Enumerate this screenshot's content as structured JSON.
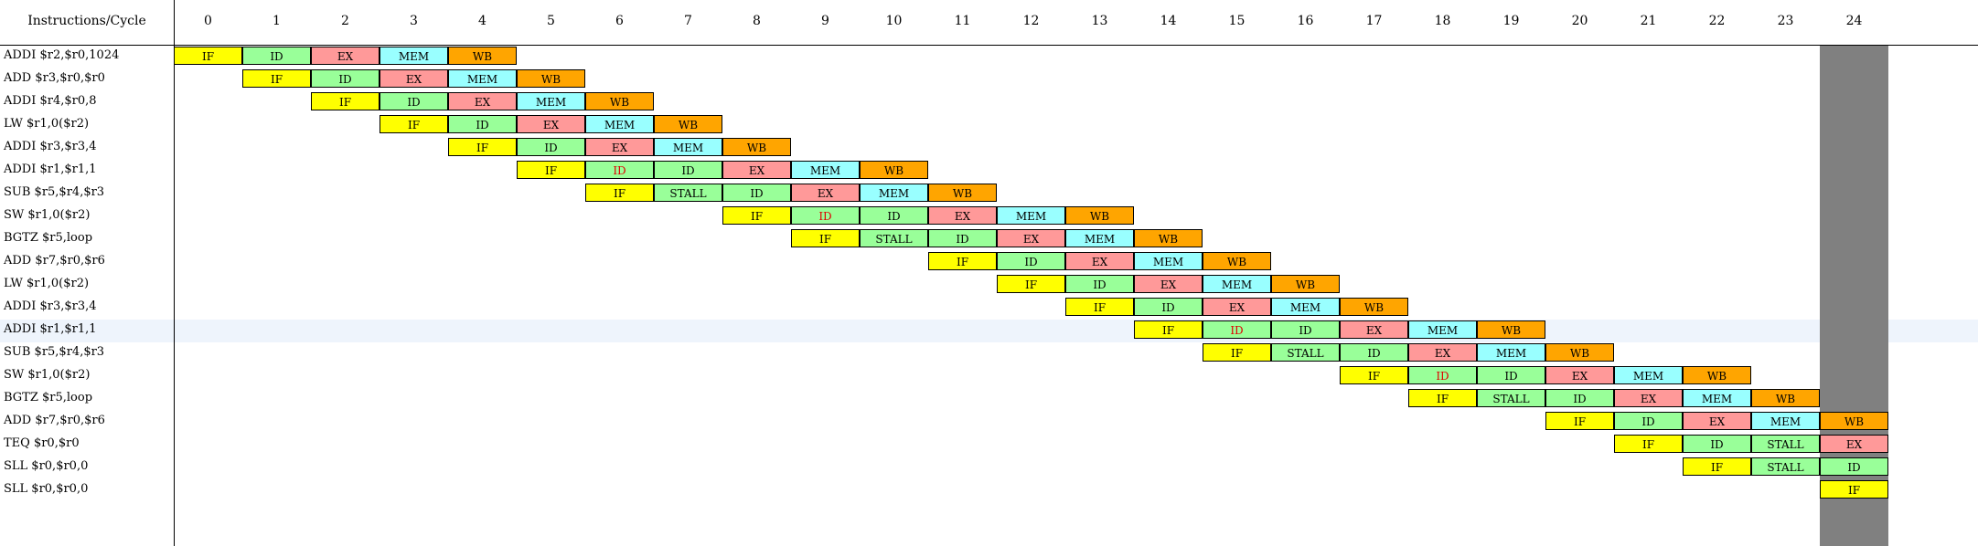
{
  "header": {
    "label": "Instructions/Cycle",
    "cycles": [
      "0",
      "1",
      "2",
      "3",
      "4",
      "5",
      "6",
      "7",
      "8",
      "9",
      "10",
      "11",
      "12",
      "13",
      "14",
      "15",
      "16",
      "17",
      "18",
      "19",
      "20",
      "21",
      "22",
      "23",
      "24"
    ]
  },
  "highlight": {
    "current_cycle": "24",
    "selected_row_index": 12
  },
  "colors": {
    "IF": "#ffff00",
    "ID": "#99ff99",
    "STALL": "#99ff99",
    "EX": "#ff9999",
    "MEM": "#99ffff",
    "WB": "#ffa500",
    "hazard_text": "#e00000",
    "current_column": "#808080"
  },
  "rows": [
    {
      "name": "ADDI $r2,$r0,1024",
      "start": 0,
      "stages": [
        "IF",
        "ID",
        "EX",
        "MEM",
        "WB"
      ],
      "red": []
    },
    {
      "name": "ADD $r3,$r0,$r0",
      "start": 1,
      "stages": [
        "IF",
        "ID",
        "EX",
        "MEM",
        "WB"
      ],
      "red": []
    },
    {
      "name": "ADDI $r4,$r0,8",
      "start": 2,
      "stages": [
        "IF",
        "ID",
        "EX",
        "MEM",
        "WB"
      ],
      "red": []
    },
    {
      "name": "LW $r1,0($r2)",
      "start": 3,
      "stages": [
        "IF",
        "ID",
        "EX",
        "MEM",
        "WB"
      ],
      "red": []
    },
    {
      "name": "ADDI $r3,$r3,4",
      "start": 4,
      "stages": [
        "IF",
        "ID",
        "EX",
        "MEM",
        "WB"
      ],
      "red": []
    },
    {
      "name": "ADDI $r1,$r1,1",
      "start": 5,
      "stages": [
        "IF",
        "ID",
        "ID",
        "EX",
        "MEM",
        "WB"
      ],
      "red": [
        1
      ]
    },
    {
      "name": "SUB $r5,$r4,$r3",
      "start": 6,
      "stages": [
        "IF",
        "STALL",
        "ID",
        "EX",
        "MEM",
        "WB"
      ],
      "red": []
    },
    {
      "name": "SW $r1,0($r2)",
      "start": 8,
      "stages": [
        "IF",
        "ID",
        "ID",
        "EX",
        "MEM",
        "WB"
      ],
      "red": [
        1
      ]
    },
    {
      "name": "BGTZ $r5,loop",
      "start": 9,
      "stages": [
        "IF",
        "STALL",
        "ID",
        "EX",
        "MEM",
        "WB"
      ],
      "red": []
    },
    {
      "name": "ADD $r7,$r0,$r6",
      "start": 11,
      "stages": [
        "IF",
        "ID",
        "EX",
        "MEM",
        "WB"
      ],
      "red": []
    },
    {
      "name": "LW $r1,0($r2)",
      "start": 12,
      "stages": [
        "IF",
        "ID",
        "EX",
        "MEM",
        "WB"
      ],
      "red": []
    },
    {
      "name": "ADDI $r3,$r3,4",
      "start": 13,
      "stages": [
        "IF",
        "ID",
        "EX",
        "MEM",
        "WB"
      ],
      "red": []
    },
    {
      "name": "ADDI $r1,$r1,1",
      "start": 14,
      "stages": [
        "IF",
        "ID",
        "ID",
        "EX",
        "MEM",
        "WB"
      ],
      "red": [
        1
      ]
    },
    {
      "name": "SUB $r5,$r4,$r3",
      "start": 15,
      "stages": [
        "IF",
        "STALL",
        "ID",
        "EX",
        "MEM",
        "WB"
      ],
      "red": []
    },
    {
      "name": "SW $r1,0($r2)",
      "start": 17,
      "stages": [
        "IF",
        "ID",
        "ID",
        "EX",
        "MEM",
        "WB"
      ],
      "red": [
        1
      ]
    },
    {
      "name": "BGTZ $r5,loop",
      "start": 18,
      "stages": [
        "IF",
        "STALL",
        "ID",
        "EX",
        "MEM",
        "WB"
      ],
      "red": []
    },
    {
      "name": "ADD $r7,$r0,$r6",
      "start": 20,
      "stages": [
        "IF",
        "ID",
        "EX",
        "MEM",
        "WB"
      ],
      "red": []
    },
    {
      "name": "TEQ $r0,$r0",
      "start": 21,
      "stages": [
        "IF",
        "ID",
        "STALL",
        "EX"
      ],
      "red": []
    },
    {
      "name": "SLL $r0,$r0,0",
      "start": 22,
      "stages": [
        "IF",
        "STALL",
        "ID"
      ],
      "red": []
    },
    {
      "name": "SLL $r0,$r0,0",
      "start": 24,
      "stages": [
        "IF"
      ],
      "red": []
    }
  ]
}
